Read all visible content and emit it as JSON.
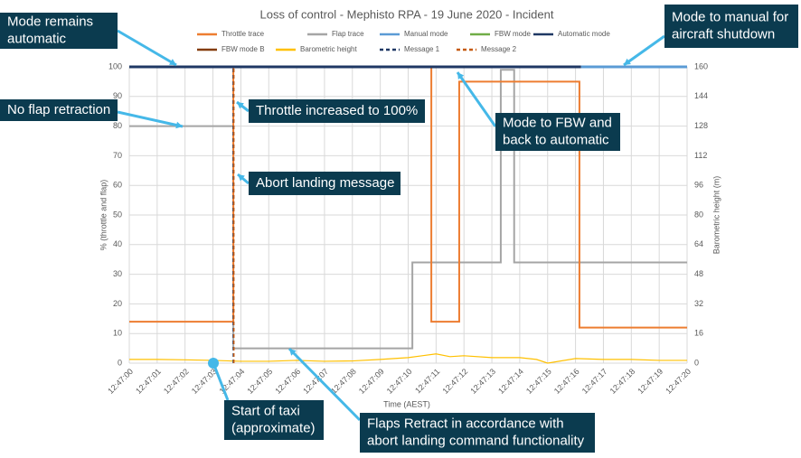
{
  "chart_data": {
    "type": "line",
    "title": "Loss of control - Mephisto RPA - 19 June 2020 - Incident",
    "x_label": "Time (AEST)",
    "y_label": "% (throttle and flap)",
    "y2_label": "Barometric height (m)",
    "xlim": [
      0,
      20
    ],
    "xticks": [
      {
        "value": 0,
        "label": "12:47:00"
      },
      {
        "value": 1,
        "label": "12:47:01"
      },
      {
        "value": 2,
        "label": "12:47:02"
      },
      {
        "value": 3,
        "label": "12:47:03"
      },
      {
        "value": 4,
        "label": "12:47:04"
      },
      {
        "value": 5,
        "label": "12:47:05"
      },
      {
        "value": 6,
        "label": "12:47:06"
      },
      {
        "value": 7,
        "label": "12:47:07"
      },
      {
        "value": 8,
        "label": "12:47:08"
      },
      {
        "value": 9,
        "label": "12:47:09"
      },
      {
        "value": 10,
        "label": "12:47:10"
      },
      {
        "value": 11,
        "label": "12:47:11"
      },
      {
        "value": 12,
        "label": "12:47:12"
      },
      {
        "value": 13,
        "label": "12:47:13"
      },
      {
        "value": 14,
        "label": "12:47:14"
      },
      {
        "value": 15,
        "label": "12:47:15"
      },
      {
        "value": 16,
        "label": "12:47:16"
      },
      {
        "value": 17,
        "label": "12:47:17"
      },
      {
        "value": 18,
        "label": "12:47:18"
      },
      {
        "value": 19,
        "label": "12:47:19"
      },
      {
        "value": 20,
        "label": "12:47:20"
      }
    ],
    "ylim": [
      0,
      100
    ],
    "yticks": [
      0,
      10,
      20,
      30,
      40,
      50,
      60,
      70,
      80,
      90,
      100
    ],
    "y2lim": [
      0,
      160
    ],
    "y2ticks": [
      0,
      16,
      32,
      48,
      64,
      80,
      96,
      112,
      128,
      144,
      160
    ],
    "grid": true,
    "series": [
      {
        "name": "Throttle trace",
        "color": "#ed7d31",
        "style": "solid",
        "x": [
          0,
          3.73,
          3.73,
          10.83,
          10.83,
          11.83,
          11.83,
          16.14,
          16.14,
          20
        ],
        "values": [
          14,
          14,
          100,
          100,
          14,
          14,
          95,
          95,
          12,
          12
        ]
      },
      {
        "name": "Flap trace",
        "color": "#a5a5a5",
        "style": "solid",
        "x": [
          0,
          3.73,
          3.73,
          10.15,
          10.15,
          13.32,
          13.32,
          13.8,
          13.8,
          20
        ],
        "values": [
          80,
          80,
          5,
          5,
          34,
          34,
          99,
          99,
          34,
          34
        ]
      },
      {
        "name": "Manual mode",
        "color": "#5b9bd5",
        "style": "solid",
        "x": [
          16.2,
          20
        ],
        "values": [
          100,
          100
        ]
      },
      {
        "name": "FBW mode",
        "color": "#70ad47",
        "style": "solid",
        "x": [],
        "values": []
      },
      {
        "name": "Automatic mode",
        "color": "#1f3864",
        "style": "solid",
        "x": [
          0,
          16.2
        ],
        "values": [
          100,
          100
        ]
      },
      {
        "name": "FBW mode B",
        "color": "#843c0c",
        "style": "solid",
        "x": [],
        "values": []
      },
      {
        "name": "Barometric height",
        "color": "#ffc000",
        "style": "solid",
        "axis": "y2",
        "x": [
          0,
          1,
          2,
          3,
          4,
          5,
          6,
          7,
          8,
          9,
          10,
          10.5,
          11,
          11.5,
          12,
          13,
          14,
          14.6,
          15,
          16,
          17,
          18,
          19,
          20
        ],
        "values": [
          2,
          2,
          1.8,
          1.5,
          1,
          1,
          1.5,
          1,
          1.2,
          2,
          3,
          4,
          5,
          3.5,
          4,
          3,
          3,
          2,
          0,
          2.5,
          2,
          2,
          1.5,
          1.5
        ]
      },
      {
        "name": "Message 1",
        "color": "#1f3864",
        "style": "dashed",
        "x": [
          3.73,
          3.73
        ],
        "values": [
          0,
          100
        ]
      },
      {
        "name": "Message 2",
        "color": "#c55a11",
        "style": "dashed",
        "x": [
          3.75,
          3.75
        ],
        "values": [
          0,
          100
        ]
      }
    ],
    "annotations": [
      {
        "lines": [
          "Mode remains",
          "automatic"
        ]
      },
      {
        "lines": [
          "No flap retraction"
        ]
      },
      {
        "lines": [
          "Throttle increased to 100%"
        ]
      },
      {
        "lines": [
          "Abort landing message"
        ]
      },
      {
        "lines": [
          "Mode to FBW and",
          "back to automatic"
        ]
      },
      {
        "lines": [
          "Mode to manual for",
          "aircraft shutdown"
        ]
      },
      {
        "lines": [
          "Start of taxi",
          "(approximate)"
        ]
      },
      {
        "lines": [
          "Flaps Retract in accordance with",
          "abort landing command functionality"
        ]
      }
    ]
  }
}
